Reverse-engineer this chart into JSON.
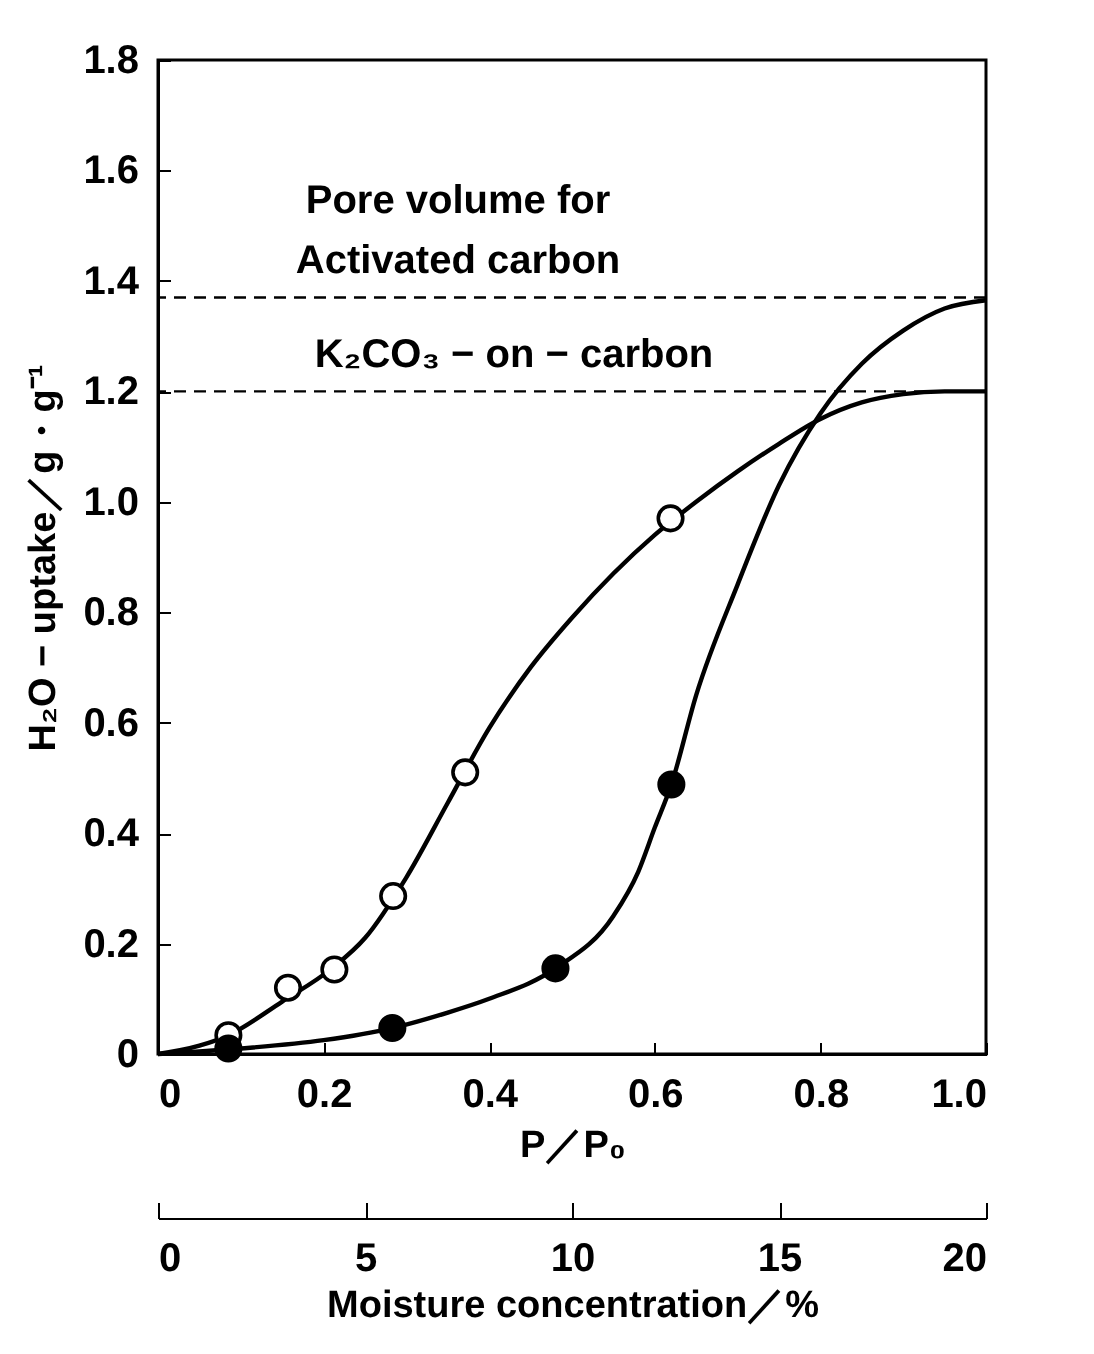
{
  "chart_data": {
    "type": "scatter",
    "xlabel": "P／P₀",
    "ylabel": "H₂O − uptake／g・g⁻¹",
    "x2label": "Moisture concentration／%",
    "xlim": [
      0,
      1
    ],
    "xticks": [
      0,
      0.2,
      0.4,
      0.6,
      0.8,
      {
        "value": 1,
        "label": "1.0"
      }
    ],
    "x2lim": [
      0,
      20
    ],
    "x2ticks": [
      0,
      5,
      10,
      15,
      20
    ],
    "ylim": [
      0,
      1.8
    ],
    "yticks": [
      0,
      0.2,
      0.4,
      0.6,
      0.8,
      {
        "value": 1,
        "label": "1.0"
      },
      1.2,
      1.4,
      1.6,
      1.8
    ],
    "grid": false,
    "marker": "circle",
    "series": [
      {
        "type": "line",
        "marker": "none",
        "color": "#000000",
        "x": [
          0,
          0.05,
          0.085,
          0.15,
          0.21,
          0.25,
          0.3,
          0.35,
          0.4,
          0.45,
          0.5,
          0.55,
          0.6,
          0.65,
          0.7,
          0.75,
          0.8,
          0.85,
          0.9,
          0.95,
          1.0
        ],
        "values": [
          0,
          0.015,
          0.034,
          0.095,
          0.155,
          0.21,
          0.32,
          0.455,
          0.59,
          0.7,
          0.79,
          0.87,
          0.94,
          1.0,
          1.055,
          1.105,
          1.15,
          1.18,
          1.195,
          1.2,
          1.2
        ]
      },
      {
        "type": "line",
        "marker": "none",
        "color": "#000000",
        "x": [
          0,
          0.1,
          0.2,
          0.283,
          0.35,
          0.4,
          0.48,
          0.55,
          0.58,
          0.6,
          0.62,
          0.65,
          0.7,
          0.75,
          0.8,
          0.85,
          0.9,
          0.95,
          1.0
        ],
        "values": [
          0,
          0.01,
          0.025,
          0.047,
          0.075,
          0.1,
          0.155,
          0.25,
          0.33,
          0.41,
          0.488,
          0.65,
          0.85,
          1.03,
          1.16,
          1.25,
          1.31,
          1.35,
          1.365
        ]
      },
      {
        "color": "#ffffff",
        "x": [
          0.085,
          0.157,
          0.213,
          0.284,
          0.371,
          0.619
        ],
        "values": [
          0.034,
          0.12,
          0.153,
          0.286,
          0.51,
          0.97
        ]
      },
      {
        "color": "#000000",
        "x": [
          0.085,
          0.283,
          0.48,
          0.62
        ],
        "values": [
          0.01,
          0.047,
          0.155,
          0.488
        ]
      }
    ],
    "ref_lines": [
      {
        "axis": "y",
        "value": 1.37,
        "label": "Pore volume for\nActivated carbon",
        "line_style": "dashed",
        "color": "#000000"
      },
      {
        "axis": "y",
        "value": 1.2,
        "label": "K₂CO₃ − on − carbon",
        "line_style": "dashed",
        "color": "#000000"
      }
    ]
  }
}
